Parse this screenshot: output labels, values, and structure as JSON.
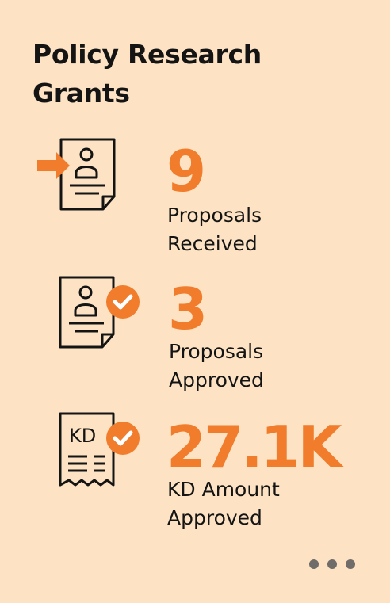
{
  "card": {
    "title_line1": "Policy Research",
    "title_line2": "Grants",
    "accent_color": "#f07c2c",
    "background_color": "#fde3c4"
  },
  "stats": [
    {
      "value": "9",
      "label_line1": "Proposals",
      "label_line2": "Received",
      "icon": "incoming-document-icon"
    },
    {
      "value": "3",
      "label_line1": "Proposals",
      "label_line2": "Approved",
      "icon": "approved-document-icon"
    },
    {
      "value": "27.1K",
      "label_line1": "KD Amount",
      "label_line2": "Approved",
      "icon": "approved-receipt-icon",
      "icon_text": "KD"
    }
  ],
  "pagination": {
    "dot_count": 3,
    "icon": "more-dots-icon"
  }
}
